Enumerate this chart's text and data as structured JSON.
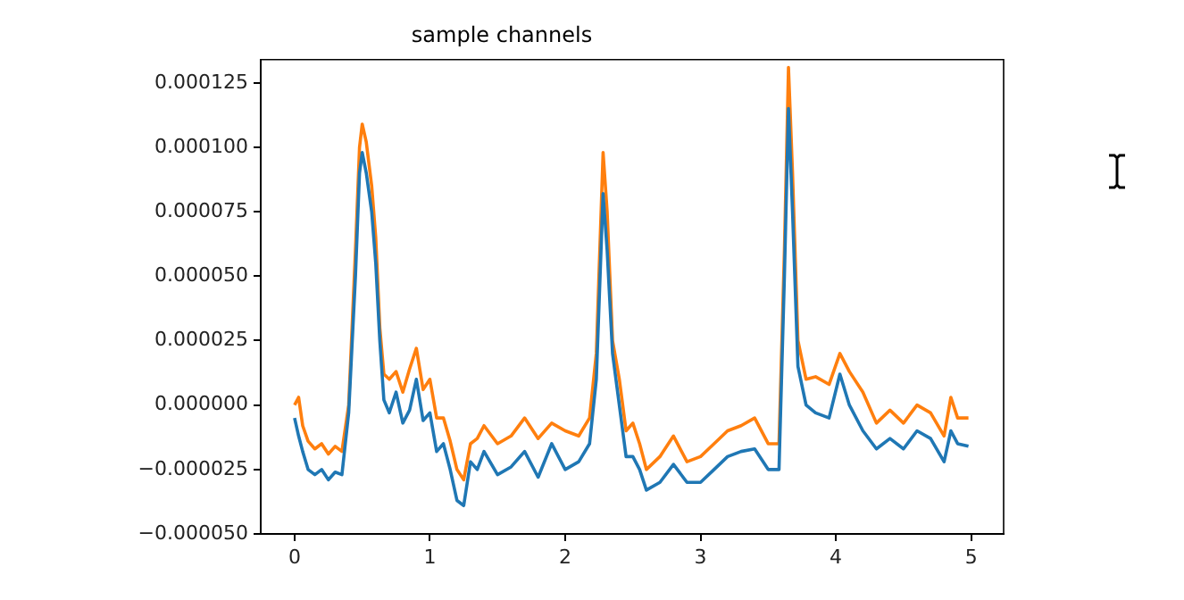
{
  "chart_data": {
    "type": "line",
    "title": "sample channels",
    "x": [
      0,
      0.03,
      0.06,
      0.1,
      0.15,
      0.2,
      0.25,
      0.3,
      0.35,
      0.4,
      0.45,
      0.48,
      0.5,
      0.53,
      0.57,
      0.6,
      0.63,
      0.66,
      0.7,
      0.75,
      0.8,
      0.85,
      0.9,
      0.95,
      1.0,
      1.05,
      1.1,
      1.15,
      1.2,
      1.25,
      1.3,
      1.35,
      1.4,
      1.5,
      1.6,
      1.7,
      1.8,
      1.9,
      2.0,
      2.1,
      2.18,
      2.23,
      2.28,
      2.31,
      2.35,
      2.4,
      2.45,
      2.5,
      2.55,
      2.6,
      2.7,
      2.8,
      2.9,
      3.0,
      3.1,
      3.2,
      3.3,
      3.4,
      3.5,
      3.58,
      3.62,
      3.65,
      3.68,
      3.72,
      3.78,
      3.85,
      3.95,
      4.03,
      4.1,
      4.2,
      4.3,
      4.4,
      4.5,
      4.6,
      4.7,
      4.8,
      4.85,
      4.9,
      4.98
    ],
    "series": [
      {
        "color": "#1f77b4",
        "values": [
          -5e-06,
          -1.2e-05,
          -1.8e-05,
          -2.5e-05,
          -2.7e-05,
          -2.5e-05,
          -2.9e-05,
          -2.6e-05,
          -2.7e-05,
          -3e-06,
          5e-05,
          9e-05,
          9.8e-05,
          9e-05,
          7.5e-05,
          5.5e-05,
          2.5e-05,
          2e-06,
          -3e-06,
          5e-06,
          -7e-06,
          -2e-06,
          1e-05,
          -6e-06,
          -3e-06,
          -1.8e-05,
          -1.5e-05,
          -2.5e-05,
          -3.7e-05,
          -3.9e-05,
          -2.2e-05,
          -2.5e-05,
          -1.8e-05,
          -2.7e-05,
          -2.4e-05,
          -1.8e-05,
          -2.8e-05,
          -1.5e-05,
          -2.5e-05,
          -2.2e-05,
          -1.5e-05,
          1e-05,
          8.2e-05,
          6e-05,
          2e-05,
          0,
          -2e-05,
          -2e-05,
          -2.5e-05,
          -3.3e-05,
          -3e-05,
          -2.3e-05,
          -3e-05,
          -3e-05,
          -2.5e-05,
          -2e-05,
          -1.8e-05,
          -1.7e-05,
          -2.5e-05,
          -2.5e-05,
          5e-05,
          0.000115,
          7.5e-05,
          1.5e-05,
          0,
          -3e-06,
          -5e-06,
          1.2e-05,
          0,
          -1e-05,
          -1.7e-05,
          -1.3e-05,
          -1.7e-05,
          -1e-05,
          -1.3e-05,
          -2.2e-05,
          -1e-05,
          -1.5e-05,
          -1.6e-05
        ]
      },
      {
        "color": "#ff7f0e",
        "values": [
          0,
          3e-06,
          -8e-06,
          -1.4e-05,
          -1.7e-05,
          -1.5e-05,
          -1.9e-05,
          -1.6e-05,
          -1.8e-05,
          0,
          6e-05,
          0.0001,
          0.000109,
          0.000102,
          8.5e-05,
          6.5e-05,
          3e-05,
          1.2e-05,
          1e-05,
          1.3e-05,
          5e-06,
          1.4e-05,
          2.2e-05,
          6e-06,
          1e-05,
          -5e-06,
          -5e-06,
          -1.4e-05,
          -2.5e-05,
          -2.9e-05,
          -1.5e-05,
          -1.3e-05,
          -8e-06,
          -1.5e-05,
          -1.2e-05,
          -5e-06,
          -1.3e-05,
          -7e-06,
          -1e-05,
          -1.2e-05,
          -5e-06,
          2e-05,
          9.8e-05,
          7.5e-05,
          2.5e-05,
          1e-05,
          -1e-05,
          -7e-06,
          -1.5e-05,
          -2.5e-05,
          -2e-05,
          -1.2e-05,
          -2.2e-05,
          -2e-05,
          -1.5e-05,
          -1e-05,
          -8e-06,
          -5e-06,
          -1.5e-05,
          -1.5e-05,
          6e-05,
          0.000131,
          9e-05,
          2.5e-05,
          1e-05,
          1.1e-05,
          8e-06,
          2e-05,
          1.3e-05,
          5e-06,
          -7e-06,
          -2e-06,
          -7e-06,
          0,
          -3e-06,
          -1.2e-05,
          3e-06,
          -5e-06,
          -5e-06
        ]
      }
    ],
    "xlim": [
      -0.25,
      5.24
    ],
    "xticks": [
      0,
      1,
      2,
      3,
      4,
      5
    ],
    "ylim": [
      -5e-05,
      0.000134
    ],
    "yticks": [
      {
        "value": -5e-05,
        "label": "−0.000050"
      },
      {
        "value": -2.5e-05,
        "label": "−0.000025"
      },
      {
        "value": 0,
        "label": "0.000000"
      },
      {
        "value": 2.5e-05,
        "label": "0.000025"
      },
      {
        "value": 5e-05,
        "label": "0.000050"
      },
      {
        "value": 7.5e-05,
        "label": "0.000075"
      },
      {
        "value": 0.0001,
        "label": "0.000100"
      },
      {
        "value": 0.000125,
        "label": "0.000125"
      }
    ],
    "grid": false,
    "legend": false,
    "marker": "none",
    "line_style": "solid"
  }
}
